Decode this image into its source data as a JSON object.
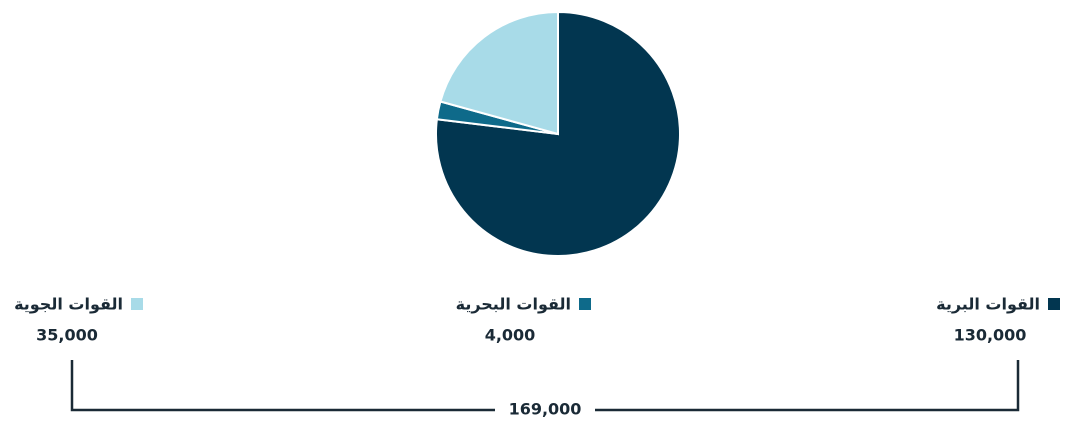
{
  "chart_data": {
    "type": "pie",
    "categories": [
      "القوات البرية",
      "القوات البحرية",
      "القوات الجوية"
    ],
    "values": [
      130000,
      4000,
      35000
    ],
    "value_labels": [
      "130,000",
      "4,000",
      "35,000"
    ],
    "colors": [
      "#023650",
      "#0e6a8a",
      "#a8dbe8"
    ],
    "total": {
      "value": 169000,
      "label": "169,000"
    }
  }
}
